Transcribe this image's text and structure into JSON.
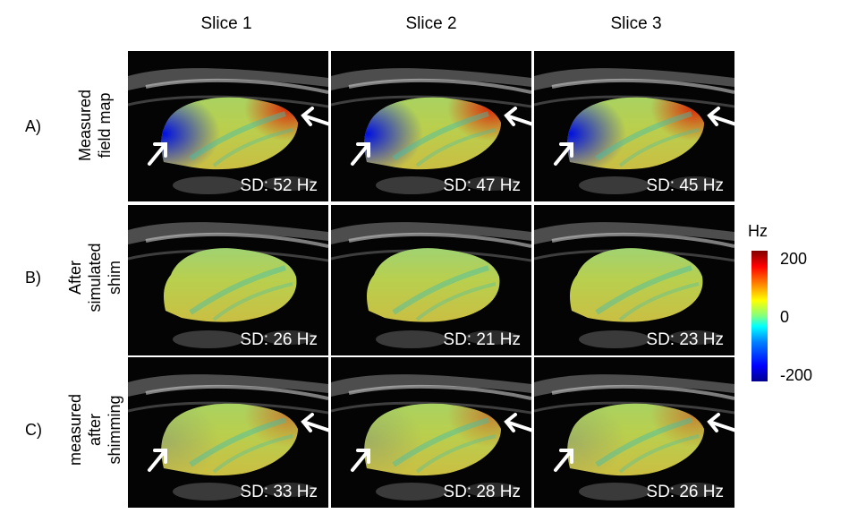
{
  "columns": [
    "Slice 1",
    "Slice 2",
    "Slice 3"
  ],
  "rows": [
    {
      "letter": "A)",
      "label_lines": [
        "Measured",
        "field map"
      ]
    },
    {
      "letter": "B)",
      "label_lines": [
        "After",
        "simulated",
        "shim"
      ]
    },
    {
      "letter": "C)",
      "label_lines": [
        "measured",
        "after",
        "shimming"
      ]
    }
  ],
  "sd_labels": [
    [
      "SD: 52 Hz",
      "SD: 47 Hz",
      "SD: 45 Hz"
    ],
    [
      "SD: 26 Hz",
      "SD: 21 Hz",
      "SD: 23 Hz"
    ],
    [
      "SD: 33 Hz",
      "SD: 28 Hz",
      "SD: 26 Hz"
    ]
  ],
  "colorbar": {
    "unit": "Hz",
    "max_label": "200",
    "mid_label": "0",
    "min_label": "-200"
  }
}
